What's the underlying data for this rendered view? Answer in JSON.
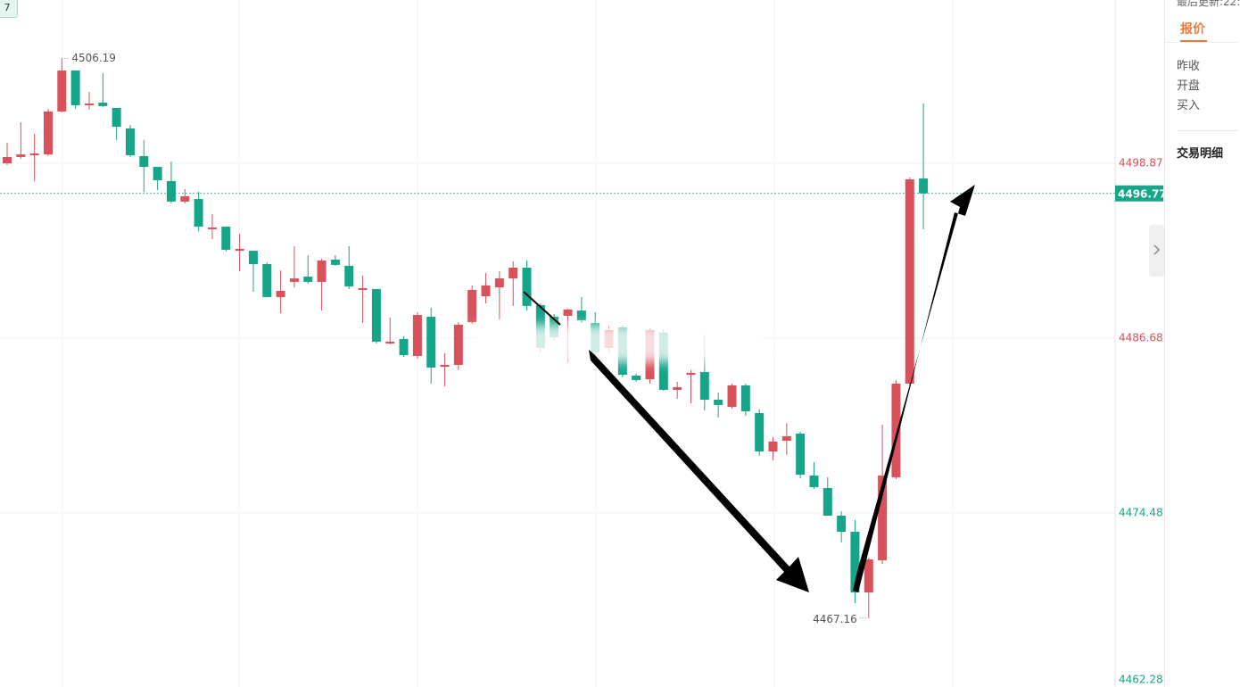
{
  "chart_data": {
    "type": "candlestick",
    "up_color": "#d9515b",
    "down_color": "#15a68a",
    "ylim": [
      4462.28,
      4510.26
    ],
    "yticks": [
      4498.87,
      4486.68,
      4474.48,
      4462.28
    ],
    "ytick_colors": [
      "#d9515b",
      "#d9515b",
      "#15a68a",
      "#15a68a"
    ],
    "grid": true,
    "open": [
      4498.87,
      4499.31,
      4499.43,
      4499.49,
      4502.48,
      4505.34,
      4502.92,
      4503.1,
      4502.73,
      4501.3,
      4499.37,
      4498.62,
      4497.63,
      4496.2,
      4496.38,
      4494.27,
      4494.45,
      4492.77,
      4492.77,
      4491.84,
      4489.54,
      4490.6,
      4490.97,
      4490.6,
      4492.15,
      4491.72,
      4490.04,
      4490.1,
      4486.3,
      4486.61,
      4485.43,
      4488.17,
      4484.68,
      4484.81,
      4487.79,
      4489.6,
      4490.22,
      4490.84,
      4491.59,
      4488.98,
      4488.17,
      4488.23,
      4488.6,
      4487.73,
      4485.99,
      4487.42,
      4484.06,
      4483.81,
      4487.05,
      4483.07,
      4484.12,
      4484.31,
      4482.38,
      4481.88,
      4483.38,
      4481.45,
      4478.77,
      4479.52,
      4480.02,
      4477.09,
      4476.22,
      4474.29,
      4473.17,
      4468.94,
      4471.18,
      4476.97,
      4483.5,
      4497.81
    ],
    "high": [
      4500.3,
      4501.73,
      4500.93,
      4502.67,
      4506.19,
      4505.34,
      4503.85,
      4505.16,
      4502.73,
      4501.55,
      4500.49,
      4498.62,
      4499.0,
      4497.07,
      4496.88,
      4495.33,
      4494.45,
      4493.96,
      4492.77,
      4491.96,
      4491.4,
      4493.09,
      4492.46,
      4492.21,
      4492.46,
      4493.09,
      4491.03,
      4490.1,
      4488.11,
      4486.8,
      4488.48,
      4488.79,
      4485.62,
      4487.79,
      4490.35,
      4491.22,
      4491.34,
      4492.03,
      4492.09,
      4489.1,
      4488.35,
      4488.73,
      4489.54,
      4488.48,
      4487.55,
      4487.55,
      4484.19,
      4487.36,
      4487.24,
      4483.63,
      4484.44,
      4486.92,
      4482.88,
      4483.5,
      4483.5,
      4481.7,
      4479.77,
      4480.76,
      4480.14,
      4478.03,
      4476.97,
      4474.6,
      4473.98,
      4471.37,
      4480.64,
      4483.75,
      4497.88,
      4503.04
    ],
    "low": [
      4498.75,
      4499.18,
      4497.63,
      4499.37,
      4502.42,
      4502.67,
      4502.61,
      4502.79,
      4500.49,
      4499.31,
      4496.88,
      4497.0,
      4496.07,
      4496.07,
      4494.14,
      4493.58,
      4492.71,
      4491.34,
      4489.91,
      4489.54,
      4488.42,
      4490.22,
      4490.47,
      4488.6,
      4491.72,
      4490.1,
      4487.73,
      4486.3,
      4486.24,
      4485.37,
      4485.24,
      4483.5,
      4483.31,
      4484.44,
      4487.67,
      4489.1,
      4487.98,
      4488.92,
      4488.6,
      4485.68,
      4486.49,
      4485.0,
      4487.73,
      4485.37,
      4485.68,
      4483.94,
      4483.63,
      4483.5,
      4483.0,
      4482.44,
      4482.13,
      4481.63,
      4481.14,
      4481.76,
      4481.26,
      4478.46,
      4478.15,
      4478.52,
      4476.9,
      4476.16,
      4474.29,
      4472.42,
      4468.19,
      4467.16,
      4470.93,
      4476.84,
      4483.38,
      4494.27
    ],
    "close": [
      4499.31,
      4499.49,
      4499.56,
      4502.48,
      4505.34,
      4502.92,
      4503.04,
      4502.86,
      4501.42,
      4499.43,
      4498.62,
      4497.69,
      4496.2,
      4496.57,
      4494.45,
      4494.39,
      4492.84,
      4492.9,
      4491.84,
      4489.54,
      4489.97,
      4490.84,
      4490.6,
      4492.09,
      4491.78,
      4490.28,
      4490.16,
      4486.43,
      4486.43,
      4485.49,
      4488.29,
      4484.62,
      4484.81,
      4487.61,
      4490.04,
      4490.35,
      4490.84,
      4491.59,
      4488.92,
      4485.99,
      4486.74,
      4488.67,
      4487.92,
      4485.68,
      4487.24,
      4484.12,
      4483.75,
      4487.24,
      4483.07,
      4483.25,
      4484.25,
      4482.38,
      4482.01,
      4483.38,
      4481.57,
      4478.77,
      4479.46,
      4479.83,
      4477.15,
      4476.28,
      4474.29,
      4473.17,
      4468.94,
      4471.24,
      4477.09,
      4483.5,
      4497.75,
      4496.77
    ]
  },
  "panel": {
    "updated": "最后更新:22:",
    "tab": "报价",
    "rows": [
      "昨收",
      "开盘",
      "买入"
    ],
    "section": "交易明细"
  },
  "badge": "7"
}
